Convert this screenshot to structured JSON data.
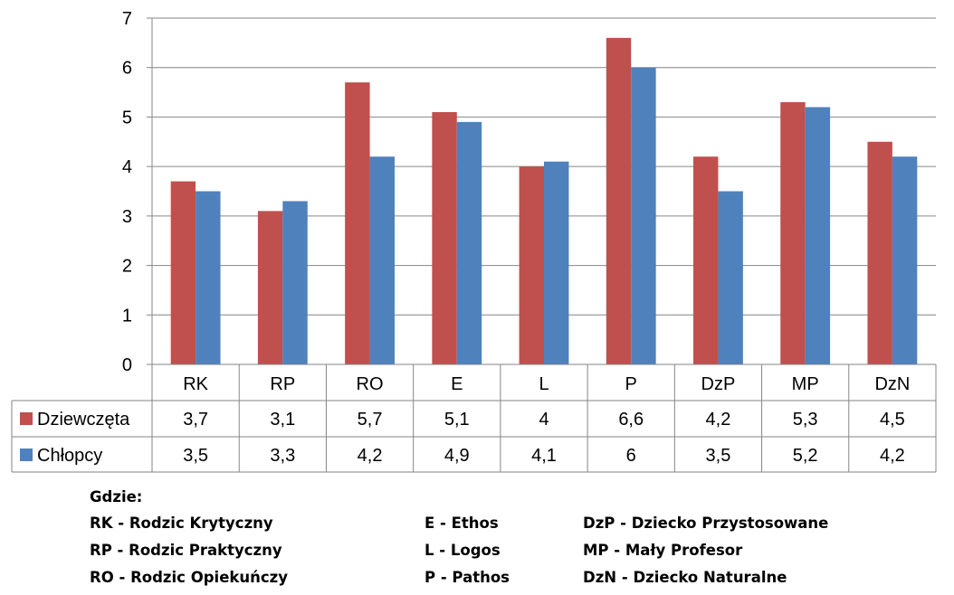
{
  "chart_data": {
    "type": "bar",
    "title": "",
    "xlabel": "",
    "ylabel": "",
    "ylim": [
      0,
      7
    ],
    "yticks": [
      "0",
      "1",
      "2",
      "3",
      "4",
      "5",
      "6",
      "7"
    ],
    "grid": true,
    "legend": "data-table",
    "categories": [
      "RK",
      "RP",
      "RO",
      "E",
      "L",
      "P",
      "DzP",
      "MP",
      "DzN"
    ],
    "series": [
      {
        "name": "Dziewczęta",
        "color": "#C0504D",
        "values": [
          3.7,
          3.1,
          5.7,
          5.1,
          4,
          6.6,
          4.2,
          5.3,
          4.5
        ],
        "labels": [
          "3,7",
          "3,1",
          "5,7",
          "5,1",
          "4",
          "6,6",
          "4,2",
          "5,3",
          "4,5"
        ]
      },
      {
        "name": "Chłopcy",
        "color": "#4F81BD",
        "values": [
          3.5,
          3.3,
          4.2,
          4.9,
          4.1,
          6,
          3.5,
          5.2,
          4.2
        ],
        "labels": [
          "3,5",
          "3,3",
          "4,2",
          "4,9",
          "4,1",
          "6",
          "3,5",
          "5,2",
          "4,2"
        ]
      }
    ]
  },
  "notes": {
    "header": "Gdzie:",
    "rows": [
      [
        "RK - Rodzic Krytyczny",
        "E - Ethos",
        "DzP - Dziecko Przystosowane"
      ],
      [
        "RP - Rodzic Praktyczny",
        "L - Logos",
        "MP - Mały Profesor"
      ],
      [
        "RO - Rodzic Opiekuńczy",
        "P - Pathos",
        "DzN - Dziecko Naturalne"
      ]
    ]
  }
}
